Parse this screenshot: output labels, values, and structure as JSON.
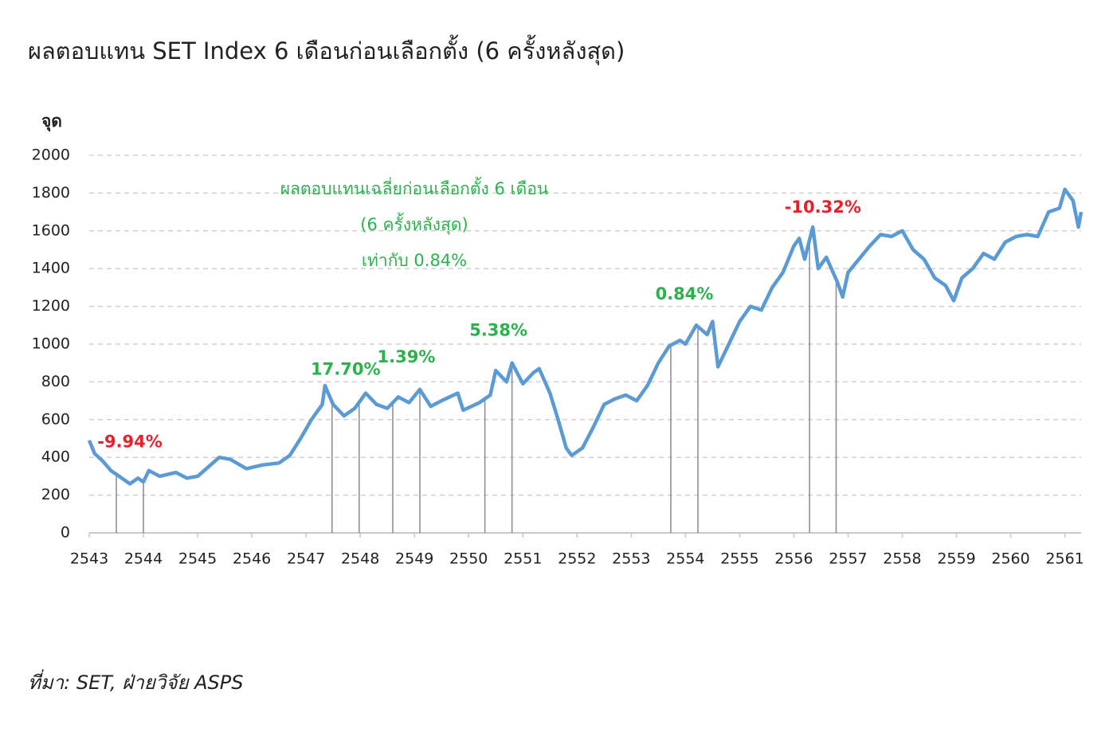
{
  "chart_data": {
    "type": "line",
    "title": "ผลตอบแทน SET Index 6 เดือนก่อนเลือกตั้ง (6 ครั้งหลังสุด)",
    "y_label": "จุด",
    "source": "ที่มา: SET, ฝ่ายวิจัย ASPS",
    "note": [
      "ผลตอบแทนเฉลี่ยก่อนเลือกตั้ง 6 เดือน",
      "(6 ครั้งหลังสุด)",
      "เท่ากับ 0.84%"
    ],
    "note_color": "#2bb24c",
    "color": "#5b9bd5",
    "grid": true,
    "xlim": [
      2543,
      2561.3
    ],
    "xticks": [
      2543,
      2544,
      2545,
      2546,
      2547,
      2548,
      2549,
      2550,
      2551,
      2552,
      2553,
      2554,
      2555,
      2556,
      2557,
      2558,
      2559,
      2560,
      2561
    ],
    "ylim": [
      0,
      2000
    ],
    "yticks": [
      0,
      200,
      400,
      600,
      800,
      1000,
      1200,
      1400,
      1600,
      1800,
      2000
    ],
    "x": [
      2543.0,
      2543.1,
      2543.25,
      2543.4,
      2543.55,
      2543.75,
      2543.9,
      2544.0,
      2544.1,
      2544.3,
      2544.6,
      2544.8,
      2545.0,
      2545.2,
      2545.4,
      2545.6,
      2545.9,
      2546.2,
      2546.5,
      2546.7,
      2546.9,
      2547.1,
      2547.3,
      2547.35,
      2547.5,
      2547.7,
      2547.9,
      2548.1,
      2548.3,
      2548.5,
      2548.7,
      2548.9,
      2549.1,
      2549.3,
      2549.5,
      2549.8,
      2549.9,
      2550.2,
      2550.4,
      2550.5,
      2550.7,
      2550.8,
      2551.0,
      2551.2,
      2551.3,
      2551.5,
      2551.65,
      2551.8,
      2551.9,
      2552.1,
      2552.3,
      2552.5,
      2552.7,
      2552.9,
      2553.1,
      2553.3,
      2553.5,
      2553.7,
      2553.9,
      2554.0,
      2554.2,
      2554.4,
      2554.5,
      2554.6,
      2554.8,
      2555.0,
      2555.2,
      2555.4,
      2555.6,
      2555.8,
      2556.0,
      2556.1,
      2556.2,
      2556.35,
      2556.45,
      2556.6,
      2556.8,
      2556.9,
      2557.0,
      2557.2,
      2557.4,
      2557.6,
      2557.8,
      2558.0,
      2558.2,
      2558.4,
      2558.6,
      2558.8,
      2558.95,
      2559.1,
      2559.3,
      2559.5,
      2559.7,
      2559.9,
      2560.1,
      2560.3,
      2560.5,
      2560.7,
      2560.9,
      2561.0,
      2561.15,
      2561.25,
      2561.3
    ],
    "values": [
      490,
      420,
      380,
      330,
      300,
      260,
      290,
      270,
      330,
      300,
      320,
      290,
      300,
      350,
      400,
      390,
      340,
      360,
      370,
      410,
      500,
      600,
      680,
      780,
      680,
      620,
      660,
      740,
      680,
      660,
      720,
      690,
      760,
      670,
      700,
      740,
      650,
      690,
      730,
      860,
      800,
      900,
      790,
      850,
      870,
      740,
      600,
      450,
      410,
      450,
      560,
      680,
      710,
      730,
      700,
      780,
      900,
      990,
      1020,
      1000,
      1100,
      1050,
      1120,
      880,
      1000,
      1120,
      1200,
      1180,
      1300,
      1380,
      1520,
      1560,
      1450,
      1620,
      1400,
      1460,
      1330,
      1250,
      1380,
      1450,
      1520,
      1580,
      1570,
      1600,
      1500,
      1450,
      1350,
      1310,
      1230,
      1350,
      1400,
      1480,
      1450,
      1540,
      1570,
      1580,
      1570,
      1700,
      1720,
      1820,
      1760,
      1620,
      1700
    ],
    "annotations": [
      {
        "label": "-9.94%",
        "color": "#e8202a",
        "x": [
          2543.5,
          2544.0
        ]
      },
      {
        "label": "17.70%",
        "color": "#2bb24c",
        "x": [
          2547.48,
          2547.98
        ]
      },
      {
        "label": "1.39%",
        "color": "#2bb24c",
        "x": [
          2548.6,
          2549.1
        ]
      },
      {
        "label": "5.38%",
        "color": "#2bb24c",
        "x": [
          2550.3,
          2550.8
        ]
      },
      {
        "label": "0.84%",
        "color": "#2bb24c",
        "x": [
          2553.73,
          2554.23
        ]
      },
      {
        "label": "-10.32%",
        "color": "#e8202a",
        "x": [
          2556.29,
          2556.78
        ]
      }
    ]
  }
}
